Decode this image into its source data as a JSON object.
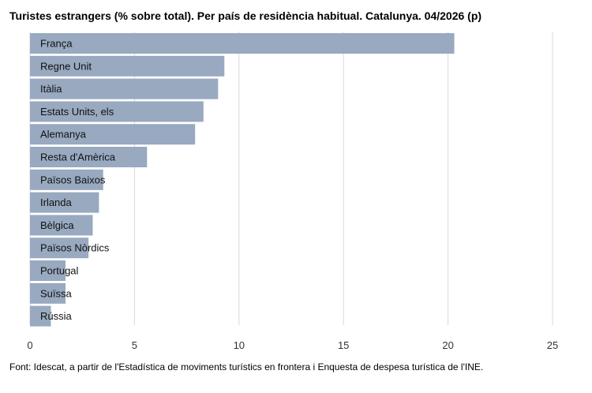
{
  "chart_data": {
    "type": "bar",
    "orientation": "horizontal",
    "title": "Turistes estrangers (% sobre total). Per país de residència habitual. Catalunya. 04/2026 (p)",
    "source": "Font: Idescat, a partir de l'Estadística de moviments turístics en frontera i Enquesta de despesa turística de l'INE.",
    "categories": [
      "França",
      "Regne Unit",
      "Itàlia",
      "Estats Units, els",
      "Alemanya",
      "Resta d'Amèrica",
      "Països Baixos",
      "Irlanda",
      "Bèlgica",
      "Països Nòrdics",
      "Portugal",
      "Suïssa",
      "Rússia"
    ],
    "values": [
      20.3,
      9.3,
      9.0,
      8.3,
      7.9,
      5.6,
      3.5,
      3.3,
      3.0,
      2.8,
      1.7,
      1.7,
      1.0
    ],
    "xlim": [
      0,
      25
    ],
    "xticks": [
      0,
      5,
      10,
      15,
      20,
      25
    ],
    "grid": true,
    "bar_color": "#98a9c0",
    "grid_color": "#d9d9d9"
  }
}
